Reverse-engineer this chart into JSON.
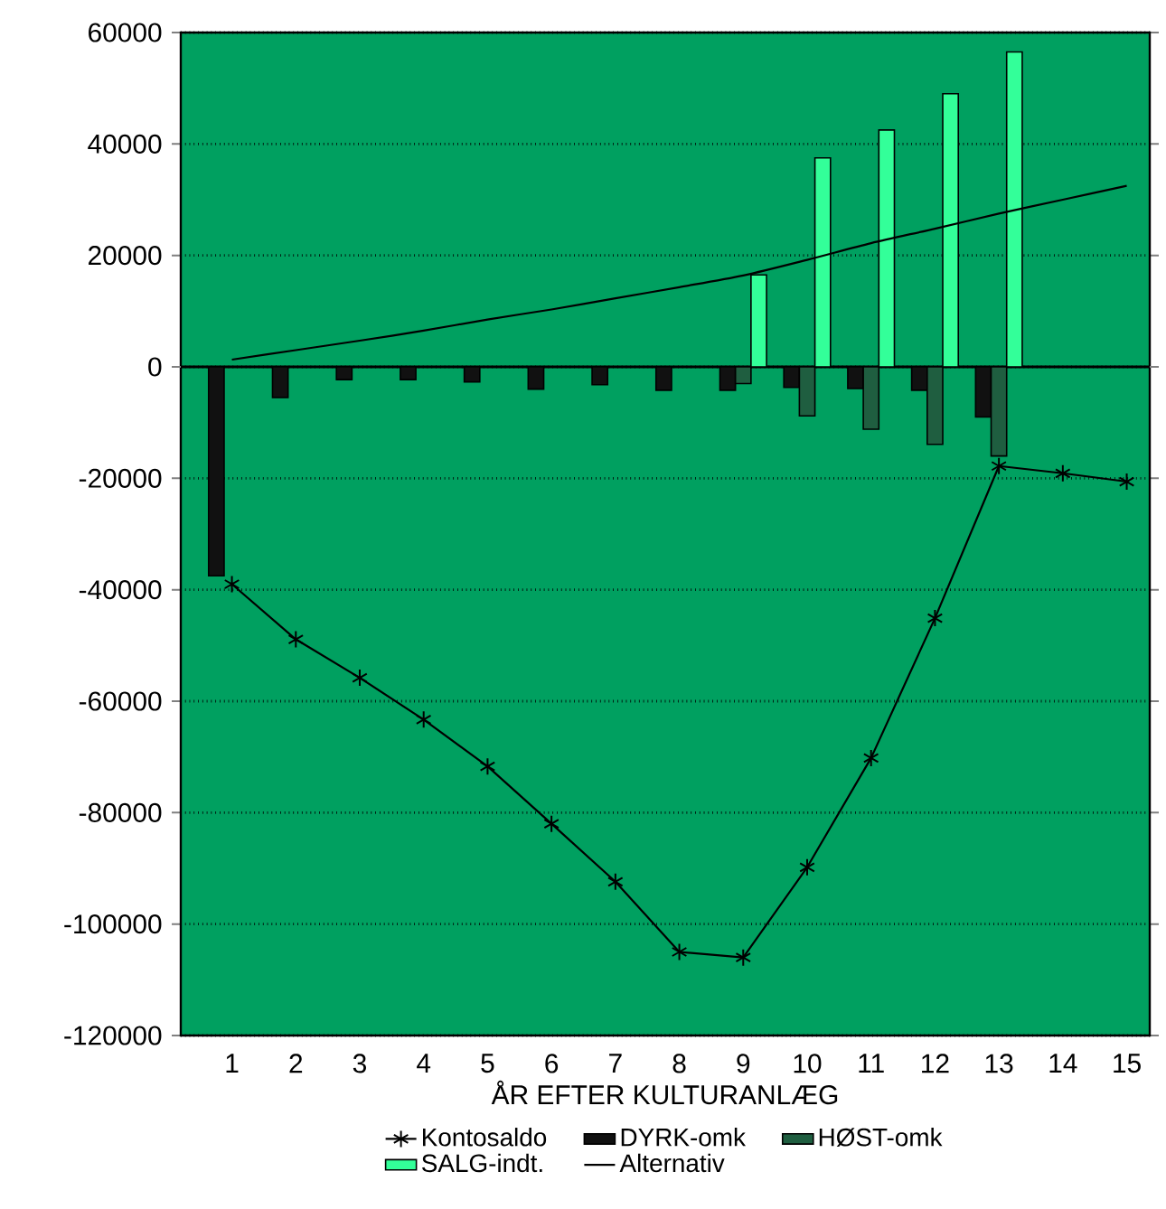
{
  "chart_data": {
    "type": "bar",
    "xlabel": "ÅR EFTER KULTURANLÆG",
    "categories": [
      "1",
      "2",
      "3",
      "4",
      "5",
      "6",
      "7",
      "8",
      "9",
      "10",
      "11",
      "12",
      "13",
      "14",
      "15"
    ],
    "ylim": [
      -120000,
      60000
    ],
    "yticks": [
      -120000,
      -100000,
      -80000,
      -60000,
      -40000,
      -20000,
      0,
      20000,
      40000,
      60000
    ],
    "grid": "y",
    "legend": "bottom",
    "series": [
      {
        "name": "Kontosaldo",
        "type": "line",
        "marker": "cross",
        "color": "#000000",
        "values": [
          -39000,
          -48900,
          -55800,
          -63300,
          -71700,
          -82000,
          -92400,
          -105000,
          -106000,
          -89800,
          -70200,
          -45100,
          -17800,
          -19100,
          -20600
        ]
      },
      {
        "name": "DYRK-omk",
        "color": "#111111",
        "values": [
          -37500,
          -5500,
          -2300,
          -2300,
          -2700,
          -4000,
          -3200,
          -4200,
          -4200,
          -3700,
          -3900,
          -4200,
          -9000,
          null,
          null
        ]
      },
      {
        "name": "HØST-omk",
        "color": "#1f5e40",
        "values": [
          null,
          null,
          null,
          null,
          null,
          null,
          null,
          null,
          -3000,
          -8800,
          -11200,
          -13900,
          -16000,
          null,
          null
        ]
      },
      {
        "name": "SALG-indt.",
        "color": "#33ff99",
        "values": [
          null,
          null,
          null,
          null,
          null,
          null,
          null,
          null,
          16500,
          37500,
          42500,
          49000,
          56500,
          null,
          null
        ]
      },
      {
        "name": "Alternativ",
        "type": "line",
        "marker": "none",
        "color": "#000000",
        "values": [
          1300,
          3000,
          4700,
          6500,
          8500,
          10300,
          12300,
          14300,
          16400,
          19200,
          22200,
          24800,
          27500,
          30000,
          32500
        ]
      }
    ]
  }
}
